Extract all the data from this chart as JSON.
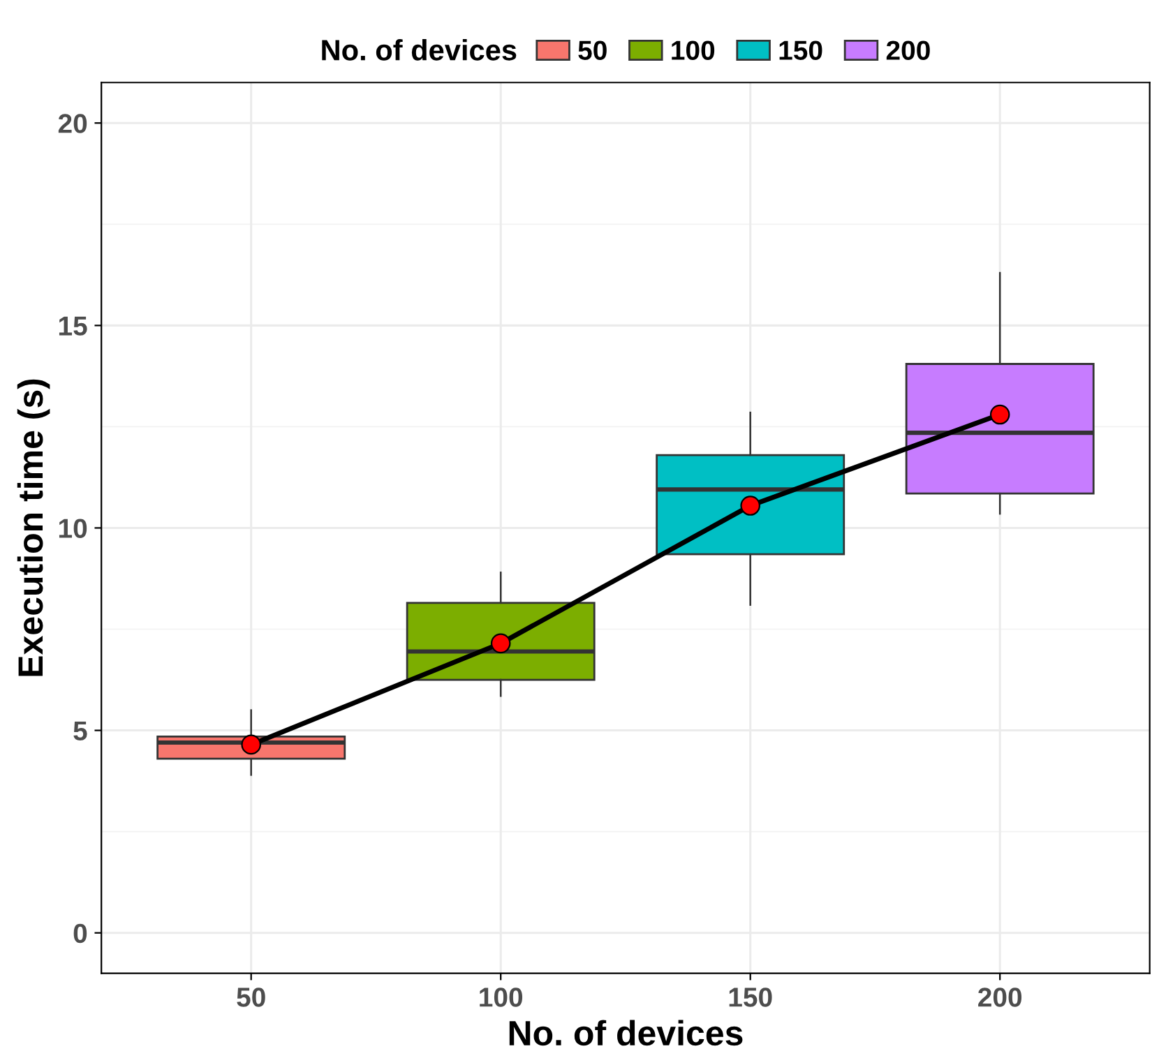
{
  "chart_data": {
    "type": "box",
    "xlabel": "No. of devices",
    "ylabel": "Execution time (s)",
    "legend_title": "No. of devices",
    "legend": "top",
    "grid": true,
    "categories": [
      "50",
      "100",
      "150",
      "200"
    ],
    "series": [
      {
        "name": "50",
        "color": "#f8766d",
        "boxes": [
          {
            "low": 3.9,
            "q1": 4.3,
            "median": 4.7,
            "q3": 4.85,
            "high": 5.5
          },
          null,
          null,
          null
        ]
      },
      {
        "name": "100",
        "color": "#7cae00",
        "boxes": [
          null,
          {
            "low": 5.85,
            "q1": 6.25,
            "median": 6.95,
            "q3": 8.15,
            "high": 8.9
          },
          null,
          null
        ]
      },
      {
        "name": "150",
        "color": "#00bfc4",
        "boxes": [
          null,
          null,
          {
            "low": 8.1,
            "q1": 9.35,
            "median": 10.95,
            "q3": 11.8,
            "high": 12.85
          },
          null
        ]
      },
      {
        "name": "200",
        "color": "#c77cff",
        "boxes": [
          null,
          null,
          null,
          {
            "low": 10.35,
            "q1": 10.85,
            "median": 12.35,
            "q3": 14.05,
            "high": 16.3
          }
        ]
      },
      {
        "type": "line",
        "color": "#000000",
        "marker": "none",
        "x": [
          "50",
          "100",
          "150",
          "200"
        ],
        "values": [
          4.65,
          7.15,
          10.55,
          12.8
        ]
      },
      {
        "type": "scatter",
        "color": "#ff0000",
        "marker": "circle",
        "x": [
          "50",
          "100",
          "150",
          "200"
        ],
        "values": [
          4.65,
          7.15,
          10.55,
          12.8
        ]
      }
    ],
    "ylim": [
      -1,
      21
    ],
    "yticks": [
      0,
      5,
      10,
      15,
      20
    ]
  }
}
